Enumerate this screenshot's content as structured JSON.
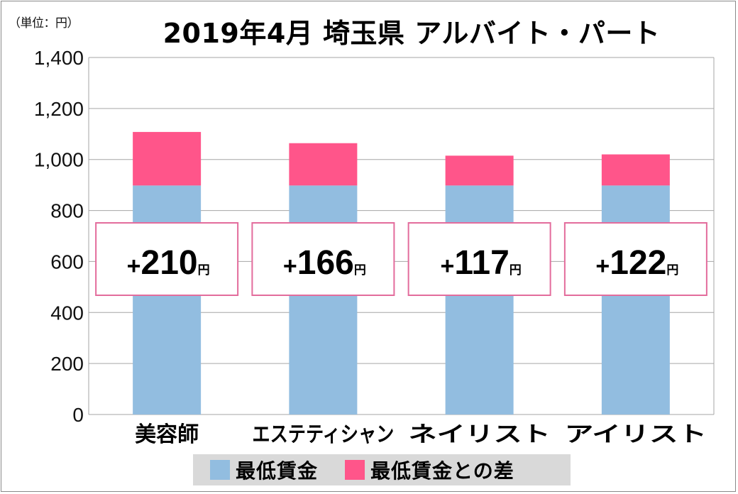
{
  "unit_label": "（単位：円）",
  "title": "2019年4月 埼玉県 アルバイト・パート",
  "legend": [
    {
      "label": "最低賃金",
      "color": "#92bde0"
    },
    {
      "label": "最低賃金との差",
      "color": "#ff558a"
    }
  ],
  "chart_data": {
    "type": "bar",
    "stacked": true,
    "title": "2019年4月 埼玉県 アルバイト・パート",
    "unit": "（単位：円）",
    "categories": [
      "美容師",
      "エステティシャン",
      "ネイリスト",
      "アイリスト"
    ],
    "series": [
      {
        "name": "最低賃金",
        "values": [
          898,
          898,
          898,
          898
        ],
        "color": "#92bde0"
      },
      {
        "name": "最低賃金との差",
        "values": [
          210,
          166,
          117,
          122
        ],
        "color": "#ff558a"
      }
    ],
    "annotations": [
      {
        "prefix": "+",
        "value": "210",
        "suffix": "円"
      },
      {
        "prefix": "+",
        "value": "166",
        "suffix": "円"
      },
      {
        "prefix": "+",
        "value": "117",
        "suffix": "円"
      },
      {
        "prefix": "+",
        "value": "122",
        "suffix": "円"
      }
    ],
    "ylim": [
      0,
      1400
    ],
    "yticks": [
      0,
      200,
      400,
      600,
      800,
      1000,
      1200,
      1400
    ],
    "ytick_labels": [
      "0",
      "200",
      "400",
      "600",
      "800",
      "1,000",
      "1,200",
      "1,400"
    ],
    "grid": true,
    "legend_position": "bottom"
  }
}
